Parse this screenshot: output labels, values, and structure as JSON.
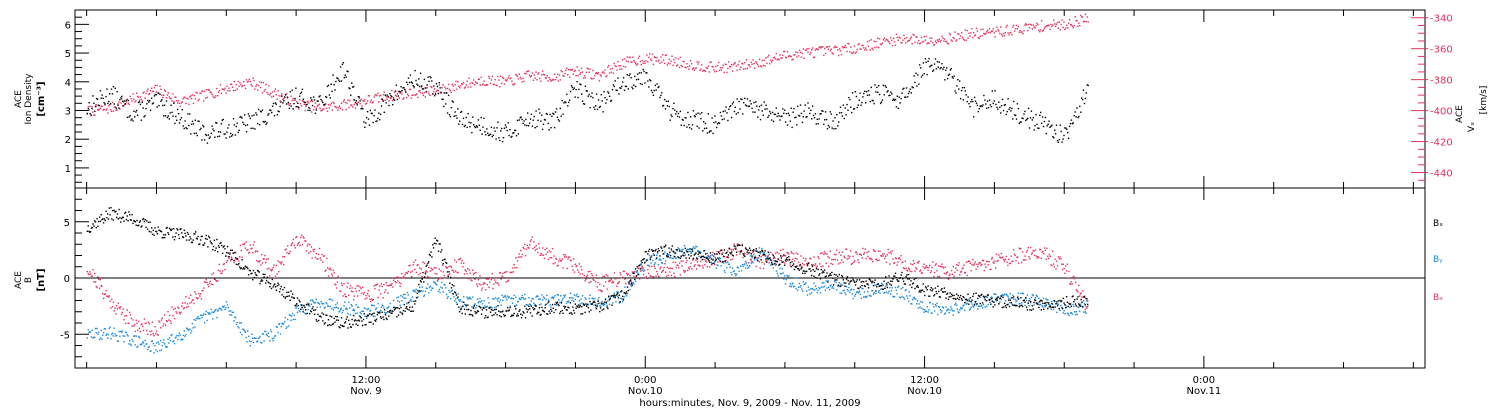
{
  "x_axis": {
    "label": "hours:minutes, Nov.  9, 2009 - Nov. 11, 2009",
    "ticks": [
      {
        "hours": 12,
        "time": "12:00",
        "date": "Nov. 9"
      },
      {
        "hours": 24,
        "time": "0:00",
        "date": "Nov.10"
      },
      {
        "hours": 36,
        "time": "12:00",
        "date": "Nov.10"
      },
      {
        "hours": 48,
        "time": "0:00",
        "date": "Nov.11"
      }
    ]
  },
  "chart_data": [
    {
      "type": "scatter",
      "title": "",
      "x_range_hours_from_nov9_0000": [
        -0.5,
        57.5
      ],
      "y_left": {
        "label_lines": [
          "ACE",
          "Ion Density"
        ],
        "unit": "[cm⁻³]",
        "ylim": [
          0.3,
          6.5
        ],
        "ticks": [
          1,
          2,
          3,
          4,
          5,
          6
        ]
      },
      "y_right": {
        "label_lines": [
          "ACE",
          "Vₓ"
        ],
        "unit": "[km/s]",
        "ylim": [
          -450,
          -335
        ],
        "ticks": [
          -340,
          -360,
          -380,
          -400,
          -420,
          -440
        ]
      },
      "series": [
        {
          "name": "Ion Density",
          "axis": "left",
          "color": "#000000",
          "x": [
            0,
            1,
            2,
            3,
            4,
            5,
            6,
            7,
            8,
            9,
            10,
            11,
            12,
            13,
            14,
            15,
            16,
            17,
            18,
            19,
            20,
            21,
            22,
            23,
            24,
            25,
            26,
            27,
            28,
            29,
            30,
            31,
            32,
            33,
            34,
            35,
            36,
            37,
            38,
            39,
            40,
            41,
            42,
            43
          ],
          "y": [
            3.1,
            3.6,
            2.9,
            3.3,
            2.8,
            2.2,
            2.4,
            2.6,
            3.0,
            3.5,
            3.2,
            4.5,
            2.6,
            3.4,
            4.1,
            3.8,
            2.7,
            2.5,
            2.2,
            2.8,
            2.6,
            3.8,
            3.2,
            4.0,
            4.3,
            3.0,
            2.7,
            2.5,
            3.2,
            3.0,
            2.7,
            3.0,
            2.6,
            3.4,
            3.6,
            3.4,
            4.6,
            4.3,
            3.1,
            3.4,
            2.9,
            2.6,
            2.1,
            3.8
          ]
        },
        {
          "name": "Vx",
          "axis": "right",
          "color": "#e0345c",
          "x": [
            0,
            1,
            2,
            3,
            4,
            5,
            6,
            7,
            8,
            9,
            10,
            11,
            12,
            13,
            14,
            15,
            16,
            17,
            18,
            19,
            20,
            21,
            22,
            23,
            24,
            25,
            26,
            27,
            28,
            29,
            30,
            31,
            32,
            33,
            34,
            35,
            36,
            37,
            38,
            39,
            40,
            41,
            42,
            43
          ],
          "y": [
            -400,
            -398,
            -392,
            -386,
            -394,
            -390,
            -385,
            -381,
            -388,
            -395,
            -398,
            -396,
            -393,
            -390,
            -388,
            -387,
            -383,
            -380,
            -381,
            -377,
            -378,
            -374,
            -377,
            -369,
            -366,
            -367,
            -370,
            -372,
            -371,
            -368,
            -364,
            -362,
            -361,
            -359,
            -356,
            -353,
            -354,
            -353,
            -350,
            -349,
            -347,
            -345,
            -344,
            -340
          ]
        }
      ]
    },
    {
      "type": "scatter",
      "title": "",
      "x_range_hours_from_nov9_0000": [
        -0.5,
        57.5
      ],
      "y_left": {
        "label_lines": [
          "ACE",
          "B"
        ],
        "unit": "[nT]",
        "ylim": [
          -8,
          8
        ],
        "ticks": [
          5,
          0,
          -5
        ]
      },
      "legend_position": "right",
      "series": [
        {
          "name": "Bₓ",
          "color": "#000000",
          "x": [
            0,
            1,
            2,
            3,
            4,
            5,
            6,
            7,
            8,
            9,
            10,
            11,
            12,
            13,
            14,
            15,
            16,
            17,
            18,
            19,
            20,
            21,
            22,
            23,
            24,
            25,
            26,
            27,
            28,
            29,
            30,
            31,
            32,
            33,
            34,
            35,
            36,
            37,
            38,
            39,
            40,
            41,
            42,
            43
          ],
          "y": [
            4.5,
            5.8,
            5.3,
            4.2,
            3.9,
            3.5,
            2.5,
            0.5,
            -0.5,
            -2.0,
            -3.5,
            -4.0,
            -3.6,
            -3.2,
            -2.5,
            3.5,
            -2.5,
            -3.0,
            -2.8,
            -3.0,
            -2.5,
            -2.7,
            -2.5,
            -1.5,
            2.0,
            2.5,
            2.2,
            1.8,
            2.6,
            2.0,
            1.5,
            0.8,
            0.0,
            -0.5,
            -0.6,
            0.2,
            -1.0,
            -1.3,
            -1.8,
            -2.0,
            -2.2,
            -2.3,
            -2.1,
            -2.0
          ]
        },
        {
          "name": "Bᵧ",
          "color": "#1b8ad8",
          "x": [
            0,
            1,
            2,
            3,
            4,
            5,
            6,
            7,
            8,
            9,
            10,
            11,
            12,
            13,
            14,
            15,
            16,
            17,
            18,
            19,
            20,
            21,
            22,
            23,
            24,
            25,
            26,
            27,
            28,
            29,
            30,
            31,
            32,
            33,
            34,
            35,
            36,
            37,
            38,
            39,
            40,
            41,
            42,
            43
          ],
          "y": [
            -5.0,
            -4.8,
            -5.5,
            -6.2,
            -5.0,
            -3.5,
            -2.5,
            -5.5,
            -5.0,
            -3.0,
            -2.0,
            -2.5,
            -3.0,
            -2.5,
            -1.5,
            -0.5,
            -2.0,
            -2.2,
            -2.0,
            -1.8,
            -2.0,
            -1.6,
            -2.2,
            -1.5,
            1.5,
            2.0,
            2.8,
            1.5,
            0.5,
            2.5,
            0.0,
            -1.0,
            -0.5,
            -1.5,
            -0.8,
            -1.2,
            -2.5,
            -2.8,
            -2.3,
            -1.8,
            -1.8,
            -2.0,
            -2.8,
            -2.5
          ]
        },
        {
          "name": "Bₔ",
          "color": "#e0345c",
          "x": [
            0,
            1,
            2,
            3,
            4,
            5,
            6,
            7,
            8,
            9,
            10,
            11,
            12,
            13,
            14,
            15,
            16,
            17,
            18,
            19,
            20,
            21,
            22,
            23,
            24,
            25,
            26,
            27,
            28,
            29,
            30,
            31,
            32,
            33,
            34,
            35,
            36,
            37,
            38,
            39,
            40,
            41,
            42,
            43
          ],
          "y": [
            1.0,
            -2.0,
            -4.0,
            -4.5,
            -2.5,
            -1.0,
            1.5,
            3.0,
            0.5,
            3.5,
            2.0,
            -1.0,
            -1.5,
            -0.8,
            1.0,
            0.5,
            1.2,
            -0.5,
            0.2,
            3.2,
            2.0,
            1.0,
            -0.5,
            0.0,
            0.5,
            0.8,
            1.0,
            2.0,
            2.5,
            1.5,
            2.0,
            1.5,
            1.8,
            2.0,
            2.2,
            1.5,
            1.0,
            0.5,
            1.0,
            1.5,
            2.0,
            2.4,
            1.0,
            -2.5
          ]
        }
      ]
    }
  ]
}
